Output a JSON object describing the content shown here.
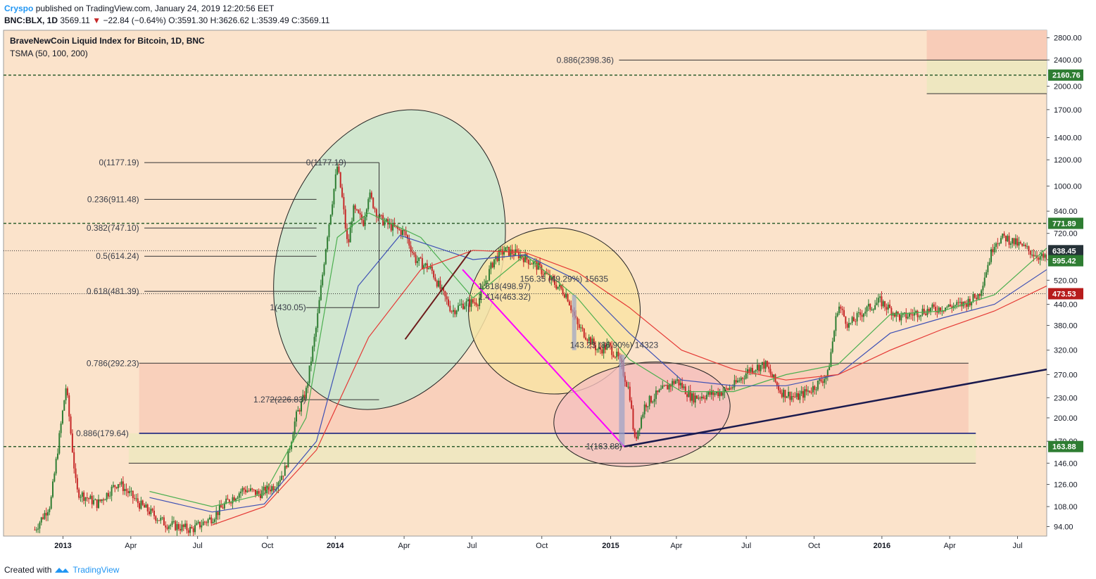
{
  "header": {
    "author": "Cryspo",
    "published": "published on TradingView.com, January 24, 2019 12:20:56 EET",
    "symbol": "BNC:BLX, 1D",
    "price": "3569.11",
    "change": "−22.84 (−0.64%)",
    "ohlc": "O:3591.30 H:3626.62 L:3539.49 C:3569.11"
  },
  "footer": {
    "created_with": "Created with",
    "brand": "TradingView"
  },
  "colors": {
    "bg": "#fbe3cb",
    "candle_up": "#2e7d32",
    "candle_down": "#c62828",
    "sma50": "#4caf50",
    "sma100": "#3f51b5",
    "sma200": "#e53935"
  },
  "chart_data": {
    "type": "candlestick",
    "title": "BraveNewCoin Liquid Index for Bitcoin, 1D, BNC",
    "indicator": "TSMA (50, 100, 200)",
    "y_scale": "log",
    "ylim": [
      88,
      2950
    ],
    "x_ticks": [
      "2013",
      "Apr",
      "Jul",
      "Oct",
      "2014",
      "Apr",
      "Jul",
      "Oct",
      "2015",
      "Apr",
      "Jul",
      "Oct",
      "2016",
      "Apr",
      "Jul"
    ],
    "y_ticks": [
      94,
      108,
      126,
      146,
      170,
      200,
      230,
      270,
      320,
      380,
      440,
      520,
      600,
      720,
      840,
      1000,
      1200,
      1400,
      1700,
      2000,
      2400,
      2800
    ],
    "price_badges": [
      {
        "value": "2160.76",
        "color": "#2e7d32"
      },
      {
        "value": "771.89",
        "color": "#2e7d32"
      },
      {
        "value": "638.45",
        "color": "#263238"
      },
      {
        "value": "595.42",
        "color": "#2e7d32"
      },
      {
        "value": "473.53",
        "color": "#b71c1c"
      },
      {
        "value": "163.88",
        "color": "#2e7d32"
      }
    ],
    "fib_levels": [
      {
        "label": "0(1177.19)",
        "value": 1177.19
      },
      {
        "label": "0.236(911.48)",
        "value": 911.48
      },
      {
        "label": "0.382(747.10)",
        "value": 747.1
      },
      {
        "label": "0.5(614.24)",
        "value": 614.24
      },
      {
        "label": "0.618(481.39)",
        "value": 481.39
      },
      {
        "label": "0.786(292.23)",
        "value": 292.23
      },
      {
        "label": "1.272(226.83)",
        "value": 226.83
      },
      {
        "label": "0.886(179.64)",
        "value": 179.64
      },
      {
        "label": "0.886(2398.36)",
        "value": 2398.36
      }
    ],
    "fib_extra": [
      {
        "label": "0(1177.19)",
        "value": 1177.19
      },
      {
        "label": "1(430.05)",
        "value": 430.05
      },
      {
        "label": "1(163.88)",
        "value": 163.88
      },
      {
        "label": "1.618(498.97)",
        "value": 498.97
      },
      {
        "label": "1.414(463.32)",
        "value": 463.32
      }
    ],
    "measures": [
      {
        "label": "156.35 (49.29%) 15635"
      },
      {
        "label": "143.23 (86.90%) 14323"
      }
    ],
    "price_path": [
      [
        0.03,
        92
      ],
      [
        0.045,
        110
      ],
      [
        0.06,
        250
      ],
      [
        0.07,
        120
      ],
      [
        0.09,
        110
      ],
      [
        0.11,
        128
      ],
      [
        0.13,
        110
      ],
      [
        0.155,
        96
      ],
      [
        0.18,
        92
      ],
      [
        0.2,
        100
      ],
      [
        0.215,
        112
      ],
      [
        0.23,
        122
      ],
      [
        0.245,
        118
      ],
      [
        0.26,
        125
      ],
      [
        0.27,
        140
      ],
      [
        0.28,
        200
      ],
      [
        0.29,
        240
      ],
      [
        0.3,
        380
      ],
      [
        0.31,
        700
      ],
      [
        0.32,
        1150
      ],
      [
        0.325,
        900
      ],
      [
        0.33,
        650
      ],
      [
        0.335,
        850
      ],
      [
        0.345,
        780
      ],
      [
        0.35,
        950
      ],
      [
        0.36,
        800
      ],
      [
        0.37,
        760
      ],
      [
        0.385,
        720
      ],
      [
        0.395,
        600
      ],
      [
        0.41,
        560
      ],
      [
        0.42,
        480
      ],
      [
        0.43,
        420
      ],
      [
        0.44,
        440
      ],
      [
        0.455,
        450
      ],
      [
        0.47,
        600
      ],
      [
        0.48,
        640
      ],
      [
        0.495,
        620
      ],
      [
        0.51,
        580
      ],
      [
        0.525,
        520
      ],
      [
        0.54,
        470
      ],
      [
        0.55,
        380
      ],
      [
        0.56,
        350
      ],
      [
        0.57,
        320
      ],
      [
        0.58,
        330
      ],
      [
        0.59,
        300
      ],
      [
        0.6,
        240
      ],
      [
        0.605,
        170
      ],
      [
        0.615,
        220
      ],
      [
        0.63,
        240
      ],
      [
        0.645,
        260
      ],
      [
        0.66,
        230
      ],
      [
        0.675,
        235
      ],
      [
        0.69,
        240
      ],
      [
        0.7,
        250
      ],
      [
        0.715,
        280
      ],
      [
        0.73,
        290
      ],
      [
        0.745,
        240
      ],
      [
        0.76,
        230
      ],
      [
        0.775,
        245
      ],
      [
        0.79,
        270
      ],
      [
        0.8,
        440
      ],
      [
        0.81,
        380
      ],
      [
        0.825,
        420
      ],
      [
        0.84,
        450
      ],
      [
        0.86,
        400
      ],
      [
        0.88,
        420
      ],
      [
        0.9,
        430
      ],
      [
        0.92,
        440
      ],
      [
        0.935,
        470
      ],
      [
        0.95,
        680
      ],
      [
        0.96,
        700
      ],
      [
        0.975,
        660
      ],
      [
        0.99,
        620
      ],
      [
        1.0,
        600
      ]
    ],
    "sma50": [
      [
        0.14,
        120
      ],
      [
        0.2,
        108
      ],
      [
        0.25,
        118
      ],
      [
        0.29,
        200
      ],
      [
        0.32,
        700
      ],
      [
        0.35,
        830
      ],
      [
        0.4,
        700
      ],
      [
        0.45,
        460
      ],
      [
        0.5,
        620
      ],
      [
        0.55,
        460
      ],
      [
        0.6,
        300
      ],
      [
        0.65,
        240
      ],
      [
        0.7,
        240
      ],
      [
        0.75,
        270
      ],
      [
        0.8,
        290
      ],
      [
        0.85,
        410
      ],
      [
        0.9,
        420
      ],
      [
        0.95,
        470
      ],
      [
        1.0,
        650
      ]
    ],
    "sma100": [
      [
        0.14,
        115
      ],
      [
        0.2,
        104
      ],
      [
        0.25,
        110
      ],
      [
        0.3,
        170
      ],
      [
        0.34,
        500
      ],
      [
        0.38,
        710
      ],
      [
        0.45,
        600
      ],
      [
        0.5,
        620
      ],
      [
        0.55,
        520
      ],
      [
        0.6,
        360
      ],
      [
        0.65,
        260
      ],
      [
        0.7,
        250
      ],
      [
        0.75,
        250
      ],
      [
        0.8,
        270
      ],
      [
        0.85,
        360
      ],
      [
        0.9,
        400
      ],
      [
        0.95,
        440
      ],
      [
        1.0,
        560
      ]
    ],
    "sma200": [
      [
        0.2,
        95
      ],
      [
        0.25,
        108
      ],
      [
        0.3,
        160
      ],
      [
        0.35,
        350
      ],
      [
        0.4,
        560
      ],
      [
        0.45,
        640
      ],
      [
        0.5,
        630
      ],
      [
        0.55,
        550
      ],
      [
        0.6,
        430
      ],
      [
        0.65,
        320
      ],
      [
        0.7,
        280
      ],
      [
        0.75,
        260
      ],
      [
        0.8,
        270
      ],
      [
        0.85,
        320
      ],
      [
        0.9,
        370
      ],
      [
        0.95,
        420
      ],
      [
        1.0,
        500
      ]
    ]
  }
}
